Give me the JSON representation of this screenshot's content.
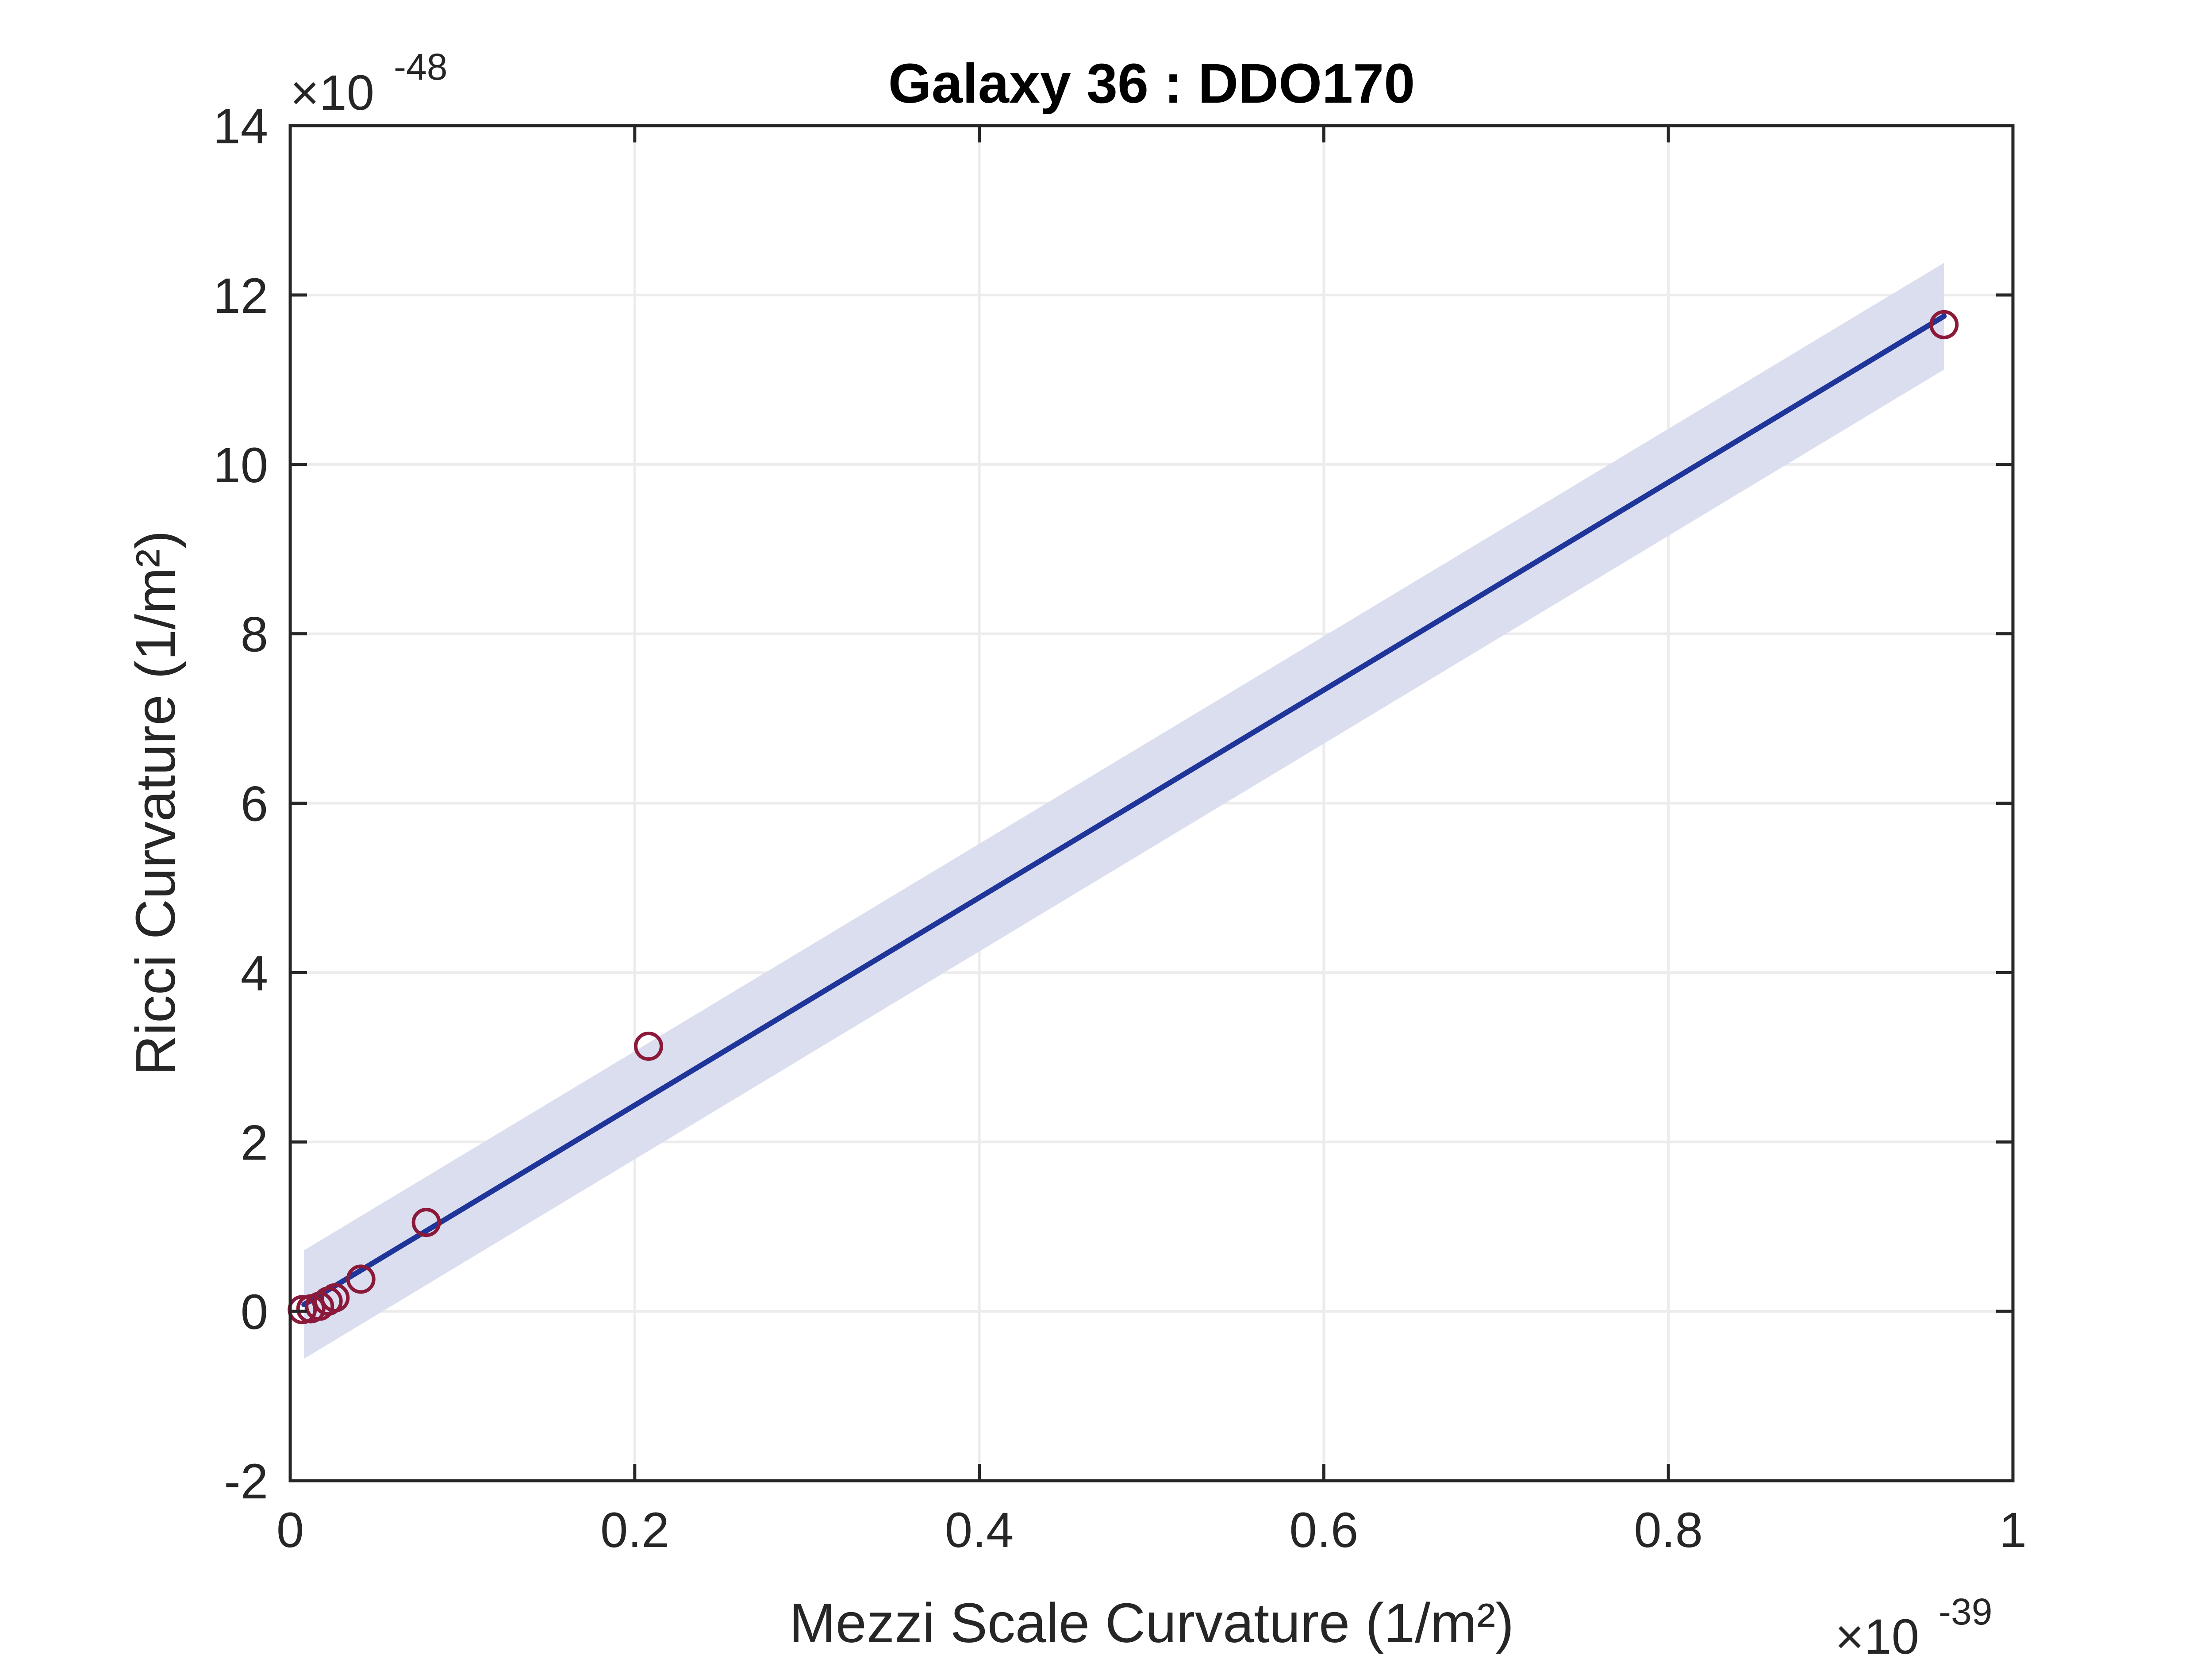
{
  "chart_data": {
    "type": "scatter",
    "title": "Galaxy 36 : DDO170",
    "xlabel": "Mezzi Scale Curvature (1/m²)",
    "ylabel": "Ricci Curvature (1/m²)",
    "x_multiplier": {
      "base": "10",
      "exponent": "-39"
    },
    "y_multiplier": {
      "base": "10",
      "exponent": "-48"
    },
    "xlim": [
      0,
      1
    ],
    "ylim": [
      -2,
      14
    ],
    "x_ticks": [
      0,
      0.2,
      0.4,
      0.6,
      0.8,
      1
    ],
    "y_ticks": [
      -2,
      0,
      2,
      4,
      6,
      8,
      10,
      12,
      14
    ],
    "x_tick_labels": [
      "0",
      "0.2",
      "0.4",
      "0.6",
      "0.8",
      "1"
    ],
    "y_tick_labels": [
      "-2",
      "0",
      "2",
      "4",
      "6",
      "8",
      "10",
      "12",
      "14"
    ],
    "grid": true,
    "points": {
      "x": [
        0.007,
        0.012,
        0.017,
        0.022,
        0.026,
        0.041,
        0.079,
        0.208,
        0.96
      ],
      "y": [
        0.02,
        0.03,
        0.06,
        0.12,
        0.16,
        0.38,
        1.05,
        3.13,
        11.65
      ],
      "marker": "circle-open",
      "color": "#8B1A3A"
    },
    "fit_line": {
      "x": [
        0.008,
        0.96
      ],
      "y": [
        0.08,
        11.75
      ],
      "color": "#1F3599"
    },
    "confidence_band": {
      "x": [
        0.008,
        0.96
      ],
      "upper": [
        0.72,
        12.38
      ],
      "lower": [
        -0.56,
        11.12
      ],
      "color": "#DADEEF"
    }
  }
}
